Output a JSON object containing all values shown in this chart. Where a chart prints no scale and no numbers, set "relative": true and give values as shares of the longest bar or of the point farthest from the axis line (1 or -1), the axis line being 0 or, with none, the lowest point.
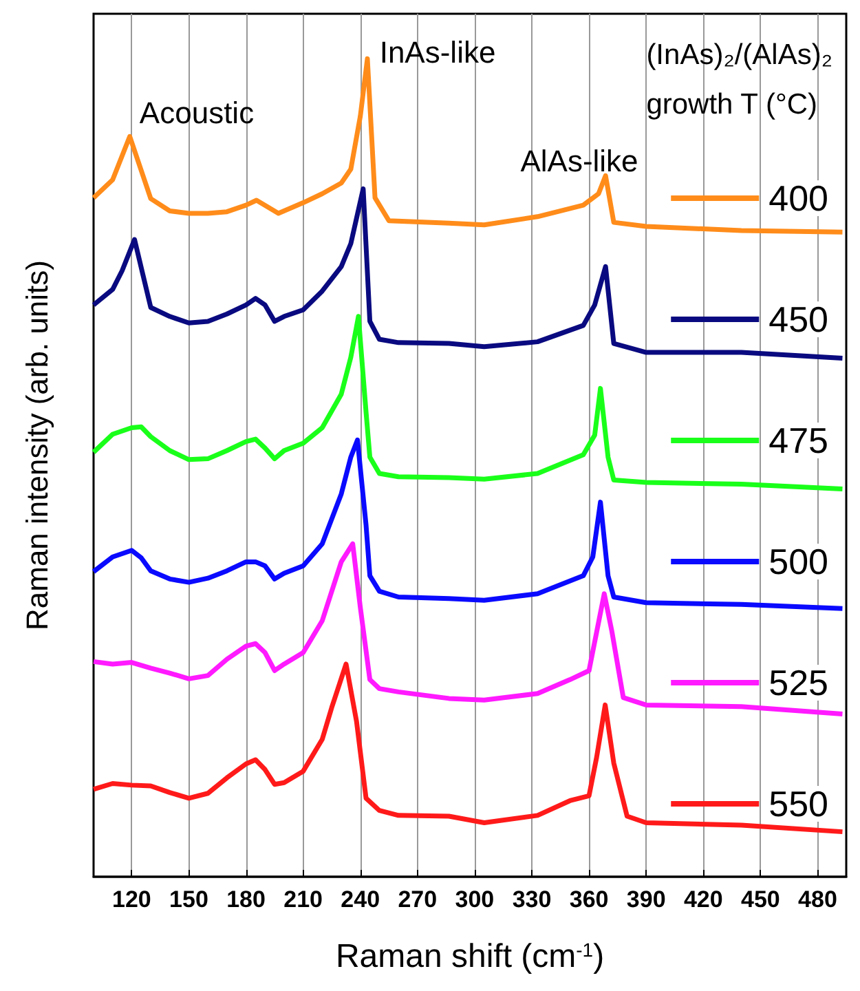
{
  "chart_data": {
    "type": "line",
    "relative": true,
    "xlabel": "Raman shift (cm$^{-1}$)",
    "ylabel": "Raman intensity (arb. units)",
    "legend_title": "(InAs)₂/(AlAs)₂\ngrowth T (°C)",
    "xlim": [
      100,
      495
    ],
    "xticks": [
      120,
      150,
      180,
      210,
      240,
      270,
      300,
      330,
      360,
      390,
      420,
      450,
      480
    ],
    "grid": "x",
    "legend": "right",
    "tick_labels": "x",
    "marker": "none",
    "annotations": [
      "Acoustic",
      "InAs-like",
      "AlAs-like"
    ],
    "series": [
      {
        "name": "400",
        "color": "#ff8c1a",
        "x": [
          100,
          110,
          119,
          130,
          140,
          150,
          160,
          170,
          180,
          185.5,
          197,
          210,
          220,
          230,
          235,
          240,
          243.7,
          247.7,
          255,
          286.5,
          305,
          333,
          357,
          365,
          368.7,
          373,
          390,
          440,
          493
        ],
        "values": [
          0.83,
          0.852,
          0.905,
          0.829,
          0.814,
          0.811,
          0.811,
          0.813,
          0.821,
          0.827,
          0.811,
          0.824,
          0.835,
          0.848,
          0.865,
          0.93,
          1,
          0.83,
          0.802,
          0.799,
          0.797,
          0.807,
          0.821,
          0.835,
          0.857,
          0.8,
          0.795,
          0.79,
          0.788
        ]
      },
      {
        "name": "450",
        "color": "#0a0a80",
        "x": [
          100,
          110,
          115,
          121.5,
          126,
          130,
          140,
          150,
          160,
          170,
          180,
          185,
          190,
          195,
          200,
          210,
          220,
          230,
          235,
          241.5,
          245,
          250,
          260,
          286.5,
          305,
          333,
          357,
          363,
          368.7,
          373,
          390,
          440,
          493
        ],
        "values": [
          0.699,
          0.718,
          0.741,
          0.779,
          0.735,
          0.696,
          0.685,
          0.677,
          0.679,
          0.688,
          0.699,
          0.707,
          0.699,
          0.679,
          0.685,
          0.693,
          0.716,
          0.746,
          0.774,
          0.841,
          0.679,
          0.657,
          0.653,
          0.652,
          0.648,
          0.654,
          0.674,
          0.699,
          0.746,
          0.652,
          0.641,
          0.641,
          0.634
        ]
      },
      {
        "name": "475",
        "color": "#1aff1a",
        "x": [
          100,
          110,
          120,
          125,
          130,
          140,
          150,
          160,
          170,
          180,
          185,
          190,
          195,
          200,
          210,
          220,
          230,
          235,
          239,
          243,
          245,
          250,
          260,
          286.5,
          305,
          333,
          357,
          363,
          366,
          370,
          373,
          390,
          440,
          493
        ],
        "values": [
          0.519,
          0.541,
          0.549,
          0.55,
          0.538,
          0.521,
          0.51,
          0.511,
          0.521,
          0.532,
          0.535,
          0.524,
          0.511,
          0.521,
          0.53,
          0.549,
          0.59,
          0.635,
          0.685,
          0.568,
          0.513,
          0.493,
          0.489,
          0.488,
          0.486,
          0.493,
          0.516,
          0.54,
          0.597,
          0.513,
          0.485,
          0.482,
          0.48,
          0.474
        ]
      },
      {
        "name": "500",
        "color": "#0a0aff",
        "x": [
          100,
          110,
          120,
          125,
          130,
          140,
          150,
          160,
          170,
          180,
          185,
          190,
          195,
          200,
          210,
          220,
          230,
          235,
          238.5,
          243,
          245,
          250,
          260,
          286.5,
          305,
          333,
          357,
          362,
          366,
          370,
          373,
          390,
          440,
          493
        ],
        "values": [
          0.373,
          0.391,
          0.399,
          0.39,
          0.374,
          0.364,
          0.36,
          0.365,
          0.374,
          0.385,
          0.385,
          0.38,
          0.364,
          0.371,
          0.38,
          0.407,
          0.468,
          0.513,
          0.534,
          0.43,
          0.368,
          0.349,
          0.342,
          0.34,
          0.338,
          0.346,
          0.368,
          0.391,
          0.458,
          0.368,
          0.342,
          0.335,
          0.333,
          0.328
        ]
      },
      {
        "name": "525",
        "color": "#ff1aff",
        "x": [
          100,
          110,
          120,
          130,
          140,
          150,
          160,
          170,
          180,
          185,
          190,
          195,
          200,
          210,
          220,
          230,
          236,
          240,
          245,
          250,
          260,
          286.5,
          305,
          333,
          350,
          360,
          368,
          372,
          378,
          390,
          440,
          493
        ],
        "values": [
          0.263,
          0.26,
          0.262,
          0.255,
          0.249,
          0.242,
          0.246,
          0.266,
          0.282,
          0.285,
          0.274,
          0.252,
          0.26,
          0.274,
          0.313,
          0.385,
          0.407,
          0.329,
          0.241,
          0.23,
          0.226,
          0.218,
          0.216,
          0.224,
          0.241,
          0.252,
          0.346,
          0.3,
          0.219,
          0.21,
          0.208,
          0.199
        ]
      },
      {
        "name": "550",
        "color": "#ff1a1a",
        "x": [
          100,
          110,
          120,
          130,
          140,
          150,
          160,
          170,
          180,
          185,
          190,
          195,
          200,
          210,
          220,
          225,
          232.5,
          238,
          243,
          250,
          260,
          286.5,
          305,
          333,
          350,
          360,
          364,
          368.5,
          373,
          380,
          390,
          440,
          493
        ],
        "values": [
          0.107,
          0.114,
          0.112,
          0.111,
          0.103,
          0.096,
          0.102,
          0.121,
          0.138,
          0.143,
          0.131,
          0.113,
          0.115,
          0.129,
          0.168,
          0.207,
          0.26,
          0.19,
          0.096,
          0.081,
          0.075,
          0.074,
          0.066,
          0.075,
          0.093,
          0.099,
          0.146,
          0.21,
          0.139,
          0.074,
          0.066,
          0.063,
          0.055
        ]
      }
    ]
  }
}
